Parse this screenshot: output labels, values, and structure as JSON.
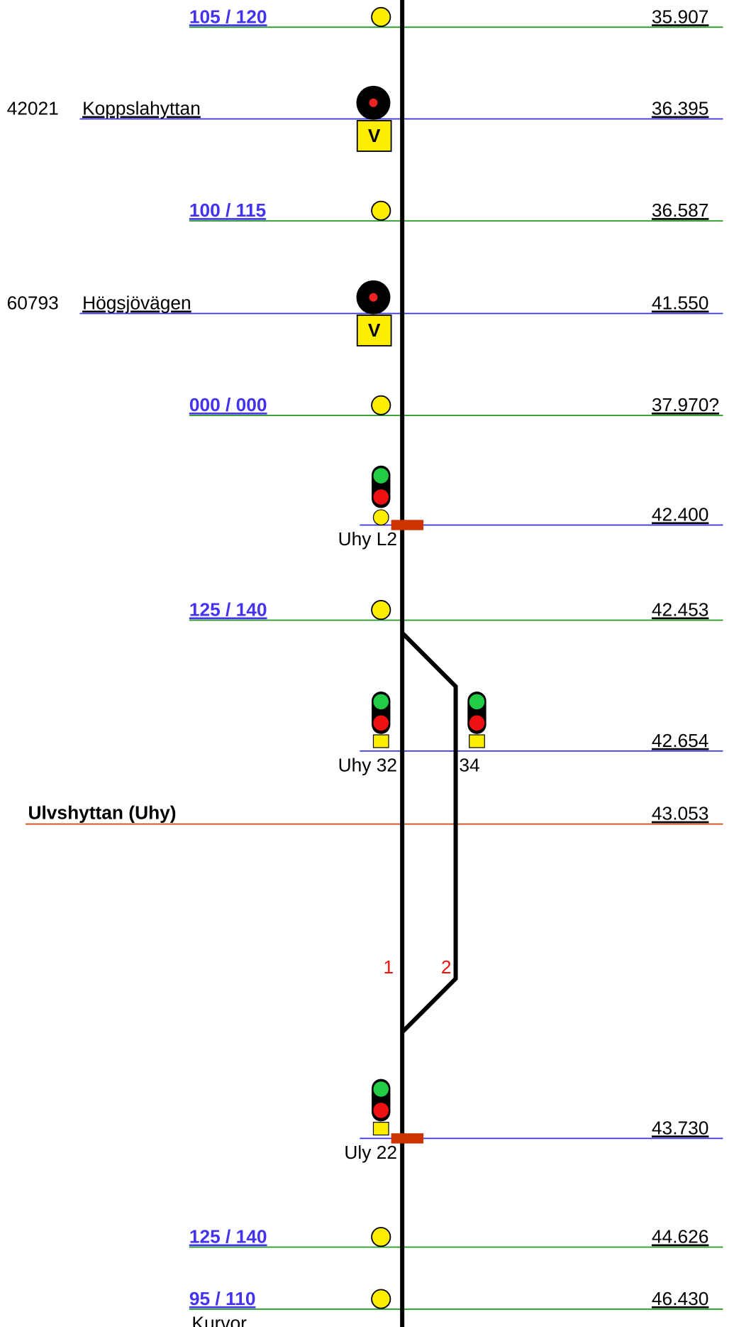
{
  "rows": [
    {
      "kind": "speed",
      "speed": "105 / 120",
      "km": "35.907"
    },
    {
      "kind": "distant",
      "number": "42021",
      "name": "Koppslahyttan",
      "plate": "V",
      "km": "36.395"
    },
    {
      "kind": "speed",
      "speed": "100 / 115",
      "km": "36.587"
    },
    {
      "kind": "distant",
      "number": "60793",
      "name": "Högsjövägen",
      "plate": "V",
      "km": "41.550"
    },
    {
      "kind": "speed",
      "speed": "000 / 000",
      "km": "37.970?"
    },
    {
      "kind": "signal",
      "signal": "Uhy L2",
      "km": "42.400"
    },
    {
      "kind": "speed",
      "speed": "125 / 140",
      "km": "42.453"
    },
    {
      "kind": "signal2",
      "signal": "Uhy 32",
      "signal_b": "34",
      "km": "42.654"
    },
    {
      "kind": "station",
      "station": "Ulvshyttan  (Uhy)",
      "km": "43.053"
    },
    {
      "kind": "tracks",
      "track_a": "1",
      "track_b": "2"
    },
    {
      "kind": "signal",
      "signal": "Uly 22",
      "km": "43.730"
    },
    {
      "kind": "speed",
      "speed": "125 / 140",
      "km": "44.626"
    },
    {
      "kind": "speed",
      "speed": "95 / 110",
      "note": "Kurvor",
      "km": "46.430"
    }
  ]
}
